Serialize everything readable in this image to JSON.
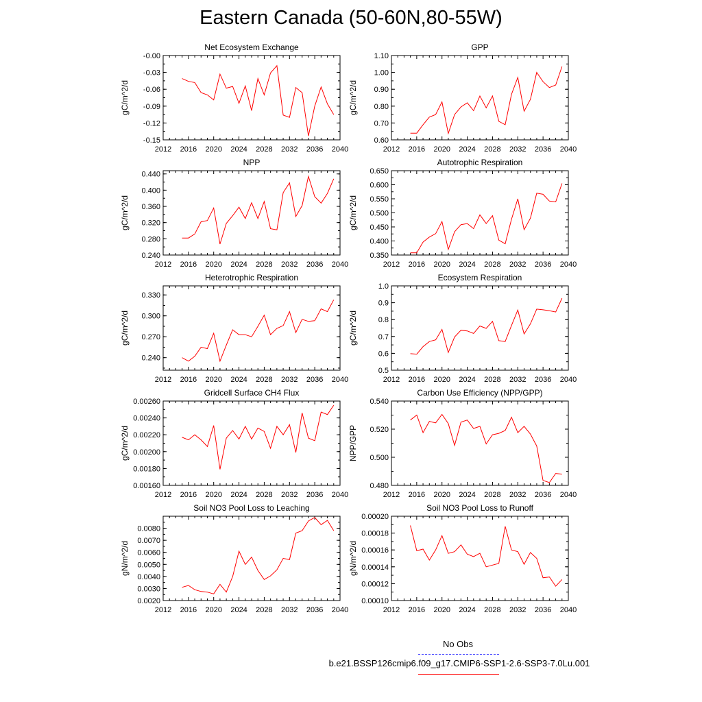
{
  "title": "Eastern Canada (50-60N,80-55W)",
  "legend": {
    "obs_label": "No Obs",
    "run_label": "b.e21.BSSP126cmip6.f09_g17.CMIP6-SSP1-2.6-SSP3-7.0Lu.001",
    "obs_color": "#4a4aff",
    "run_color": "#ff0000"
  },
  "chart_data": [
    {
      "type": "line",
      "title": "Net Ecosystem Exchange",
      "ylabel": "gC/m^2/d",
      "xlim": [
        2012,
        2040
      ],
      "xticks": [
        "2012",
        "2016",
        "2020",
        "2024",
        "2028",
        "2032",
        "2036",
        "2040"
      ],
      "ylim": [
        -0.15,
        0.0
      ],
      "yticks": [
        "-0.00",
        "-0.03",
        "-0.06",
        "-0.09",
        "-0.12",
        "-0.15"
      ],
      "x": [
        2015,
        2016,
        2017,
        2018,
        2019,
        2020,
        2021,
        2022,
        2023,
        2024,
        2025,
        2026,
        2027,
        2028,
        2029,
        2030,
        2031,
        2032,
        2033,
        2034,
        2035,
        2036,
        2037,
        2038,
        2039
      ],
      "series": [
        {
          "values": [
            -0.041,
            -0.046,
            -0.048,
            -0.066,
            -0.07,
            -0.079,
            -0.033,
            -0.058,
            -0.055,
            -0.085,
            -0.054,
            -0.098,
            -0.041,
            -0.07,
            -0.031,
            -0.018,
            -0.106,
            -0.11,
            -0.057,
            -0.066,
            -0.143,
            -0.09,
            -0.056,
            -0.086,
            -0.105
          ]
        }
      ]
    },
    {
      "type": "line",
      "title": "GPP",
      "ylabel": "gC/m^2/d",
      "xlim": [
        2012,
        2040
      ],
      "xticks": [
        "2012",
        "2016",
        "2020",
        "2024",
        "2028",
        "2032",
        "2036",
        "2040"
      ],
      "ylim": [
        0.6,
        1.1
      ],
      "yticks": [
        "0.60",
        "0.70",
        "0.80",
        "0.90",
        "1.00",
        "1.10"
      ],
      "x": [
        2015,
        2016,
        2017,
        2018,
        2019,
        2020,
        2021,
        2022,
        2023,
        2024,
        2025,
        2026,
        2027,
        2028,
        2029,
        2030,
        2031,
        2032,
        2033,
        2034,
        2035,
        2036,
        2037,
        2038,
        2039
      ],
      "series": [
        {
          "values": [
            0.64,
            0.64,
            0.69,
            0.735,
            0.75,
            0.825,
            0.638,
            0.75,
            0.795,
            0.82,
            0.773,
            0.86,
            0.79,
            0.86,
            0.71,
            0.69,
            0.87,
            0.97,
            0.77,
            0.84,
            1.0,
            0.945,
            0.91,
            0.925,
            1.035
          ]
        }
      ]
    },
    {
      "type": "line",
      "title": "NPP",
      "ylabel": "gC/m^2/d",
      "xlim": [
        2012,
        2040
      ],
      "xticks": [
        "2012",
        "2016",
        "2020",
        "2024",
        "2028",
        "2032",
        "2036",
        "2040"
      ],
      "ylim": [
        0.24,
        0.448
      ],
      "yticks": [
        "0.240",
        "0.280",
        "0.320",
        "0.360",
        "0.400",
        "0.440"
      ],
      "x": [
        2015,
        2016,
        2017,
        2018,
        2019,
        2020,
        2021,
        2022,
        2023,
        2024,
        2025,
        2026,
        2027,
        2028,
        2029,
        2030,
        2031,
        2032,
        2033,
        2034,
        2035,
        2036,
        2037,
        2038,
        2039
      ],
      "series": [
        {
          "values": [
            0.282,
            0.282,
            0.292,
            0.322,
            0.325,
            0.356,
            0.267,
            0.318,
            0.337,
            0.358,
            0.33,
            0.369,
            0.33,
            0.372,
            0.305,
            0.302,
            0.394,
            0.418,
            0.335,
            0.362,
            0.434,
            0.384,
            0.368,
            0.392,
            0.428
          ]
        }
      ]
    },
    {
      "type": "line",
      "title": "Autotrophic Respiration",
      "ylabel": "gC/m^2/d",
      "xlim": [
        2012,
        2040
      ],
      "xticks": [
        "2012",
        "2016",
        "2020",
        "2024",
        "2028",
        "2032",
        "2036",
        "2040"
      ],
      "ylim": [
        0.35,
        0.65
      ],
      "yticks": [
        "0.350",
        "0.400",
        "0.450",
        "0.500",
        "0.550",
        "0.600",
        "0.650"
      ],
      "x": [
        2015,
        2016,
        2017,
        2018,
        2019,
        2020,
        2021,
        2022,
        2023,
        2024,
        2025,
        2026,
        2027,
        2028,
        2029,
        2030,
        2031,
        2032,
        2033,
        2034,
        2035,
        2036,
        2037,
        2038,
        2039
      ],
      "series": [
        {
          "values": [
            0.358,
            0.358,
            0.396,
            0.414,
            0.426,
            0.469,
            0.37,
            0.433,
            0.458,
            0.462,
            0.444,
            0.493,
            0.462,
            0.49,
            0.403,
            0.39,
            0.477,
            0.55,
            0.44,
            0.481,
            0.57,
            0.566,
            0.542,
            0.539,
            0.605
          ]
        }
      ]
    },
    {
      "type": "line",
      "title": "Heterotrophic Respiration",
      "ylabel": "gC/m^2/d",
      "xlim": [
        2012,
        2040
      ],
      "xticks": [
        "2012",
        "2016",
        "2020",
        "2024",
        "2028",
        "2032",
        "2036",
        "2040"
      ],
      "ylim": [
        0.222,
        0.343
      ],
      "yticks": [
        "0.240",
        "0.270",
        "0.300",
        "0.330"
      ],
      "x": [
        2015,
        2016,
        2017,
        2018,
        2019,
        2020,
        2021,
        2022,
        2023,
        2024,
        2025,
        2026,
        2027,
        2028,
        2029,
        2030,
        2031,
        2032,
        2033,
        2034,
        2035,
        2036,
        2037,
        2038,
        2039
      ],
      "series": [
        {
          "values": [
            0.24,
            0.235,
            0.242,
            0.255,
            0.253,
            0.275,
            0.235,
            0.258,
            0.28,
            0.273,
            0.273,
            0.27,
            0.285,
            0.301,
            0.273,
            0.282,
            0.286,
            0.306,
            0.276,
            0.295,
            0.292,
            0.293,
            0.31,
            0.306,
            0.323
          ]
        }
      ]
    },
    {
      "type": "line",
      "title": "Ecosystem Respiration",
      "ylabel": "gC/m^2/d",
      "xlim": [
        2012,
        2040
      ],
      "xticks": [
        "2012",
        "2016",
        "2020",
        "2024",
        "2028",
        "2032",
        "2036",
        "2040"
      ],
      "ylim": [
        0.5,
        1.0
      ],
      "yticks": [
        "0.5",
        "0.6",
        "0.7",
        "0.8",
        "0.9",
        "1.0"
      ],
      "x": [
        2015,
        2016,
        2017,
        2018,
        2019,
        2020,
        2021,
        2022,
        2023,
        2024,
        2025,
        2026,
        2027,
        2028,
        2029,
        2030,
        2031,
        2032,
        2033,
        2034,
        2035,
        2036,
        2037,
        2038,
        2039
      ],
      "series": [
        {
          "values": [
            0.598,
            0.595,
            0.64,
            0.67,
            0.68,
            0.742,
            0.605,
            0.697,
            0.737,
            0.733,
            0.718,
            0.762,
            0.748,
            0.79,
            0.675,
            0.67,
            0.765,
            0.857,
            0.715,
            0.775,
            0.862,
            0.858,
            0.853,
            0.845,
            0.927
          ]
        }
      ]
    },
    {
      "type": "line",
      "title": "Gridcell Surface CH4 Flux",
      "ylabel": "gC/m^2/d",
      "xlim": [
        2012,
        2040
      ],
      "xticks": [
        "2012",
        "2016",
        "2020",
        "2024",
        "2028",
        "2032",
        "2036",
        "2040"
      ],
      "ylim": [
        0.0016,
        0.0026
      ],
      "yticks": [
        "0.00160",
        "0.00180",
        "0.00200",
        "0.00220",
        "0.00240",
        "0.00260"
      ],
      "x": [
        2015,
        2016,
        2017,
        2018,
        2019,
        2020,
        2021,
        2022,
        2023,
        2024,
        2025,
        2026,
        2027,
        2028,
        2029,
        2030,
        2031,
        2032,
        2033,
        2034,
        2035,
        2036,
        2037,
        2038,
        2039
      ],
      "series": [
        {
          "values": [
            0.00217,
            0.00214,
            0.0022,
            0.00214,
            0.00206,
            0.00231,
            0.00179,
            0.00216,
            0.00225,
            0.00215,
            0.0023,
            0.00215,
            0.00228,
            0.00224,
            0.00204,
            0.0023,
            0.0022,
            0.00232,
            0.00199,
            0.00246,
            0.00216,
            0.00213,
            0.00247,
            0.00244,
            0.00255
          ]
        }
      ]
    },
    {
      "type": "line",
      "title": "Carbon Use Efficiency (NPP/GPP)",
      "ylabel": "NPP/GPP",
      "xlim": [
        2012,
        2040
      ],
      "xticks": [
        "2012",
        "2016",
        "2020",
        "2024",
        "2028",
        "2032",
        "2036",
        "2040"
      ],
      "ylim": [
        0.48,
        0.54
      ],
      "yticks": [
        "0.480",
        "0.500",
        "0.520",
        "0.540"
      ],
      "x": [
        2015,
        2016,
        2017,
        2018,
        2019,
        2020,
        2021,
        2022,
        2023,
        2024,
        2025,
        2026,
        2027,
        2028,
        2029,
        2030,
        2031,
        2032,
        2033,
        2034,
        2035,
        2036,
        2037,
        2038,
        2039
      ],
      "series": [
        {
          "values": [
            0.5265,
            0.53,
            0.5175,
            0.5255,
            0.5245,
            0.5305,
            0.524,
            0.5085,
            0.525,
            0.5265,
            0.5205,
            0.522,
            0.5095,
            0.516,
            0.517,
            0.519,
            0.5285,
            0.5175,
            0.522,
            0.5165,
            0.508,
            0.4835,
            0.482,
            0.4885,
            0.488
          ]
        }
      ]
    },
    {
      "type": "line",
      "title": "Soil NO3 Pool Loss to Leaching",
      "ylabel": "gN/m^2/d",
      "xlim": [
        2012,
        2040
      ],
      "xticks": [
        "2012",
        "2016",
        "2020",
        "2024",
        "2028",
        "2032",
        "2036",
        "2040"
      ],
      "ylim": [
        0.002,
        0.009
      ],
      "yticks": [
        "0.0020",
        "0.0030",
        "0.0040",
        "0.0050",
        "0.0060",
        "0.0070",
        "0.0080"
      ],
      "x": [
        2015,
        2016,
        2017,
        2018,
        2019,
        2020,
        2021,
        2022,
        2023,
        2024,
        2025,
        2026,
        2027,
        2028,
        2029,
        2030,
        2031,
        2032,
        2033,
        2034,
        2035,
        2036,
        2037,
        2038,
        2039
      ],
      "series": [
        {
          "values": [
            0.0031,
            0.00325,
            0.0029,
            0.00275,
            0.0027,
            0.00255,
            0.00335,
            0.0027,
            0.004,
            0.0061,
            0.005,
            0.0056,
            0.0045,
            0.00375,
            0.00405,
            0.00455,
            0.0055,
            0.0054,
            0.0076,
            0.0078,
            0.0086,
            0.0089,
            0.0083,
            0.00865,
            0.0078
          ]
        }
      ]
    },
    {
      "type": "line",
      "title": "Soil NO3 Pool Loss to Runoff",
      "ylabel": "gN/m^2/d",
      "xlim": [
        2012,
        2040
      ],
      "xticks": [
        "2012",
        "2016",
        "2020",
        "2024",
        "2028",
        "2032",
        "2036",
        "2040"
      ],
      "ylim": [
        0.0001,
        0.0002
      ],
      "yticks": [
        "0.00010",
        "0.00012",
        "0.00014",
        "0.00016",
        "0.00018",
        "0.00020"
      ],
      "x": [
        2015,
        2016,
        2017,
        2018,
        2019,
        2020,
        2021,
        2022,
        2023,
        2024,
        2025,
        2026,
        2027,
        2028,
        2029,
        2030,
        2031,
        2032,
        2033,
        2034,
        2035,
        2036,
        2037,
        2038,
        2039
      ],
      "series": [
        {
          "values": [
            0.000189,
            0.000159,
            0.000161,
            0.000148,
            0.00016,
            0.000177,
            0.000156,
            0.000158,
            0.000166,
            0.000155,
            0.000152,
            0.000156,
            0.00014,
            0.000142,
            0.000144,
            0.000188,
            0.00016,
            0.000158,
            0.000143,
            0.000157,
            0.00015,
            0.000127,
            0.000128,
            0.000117,
            0.000125
          ]
        }
      ]
    }
  ]
}
